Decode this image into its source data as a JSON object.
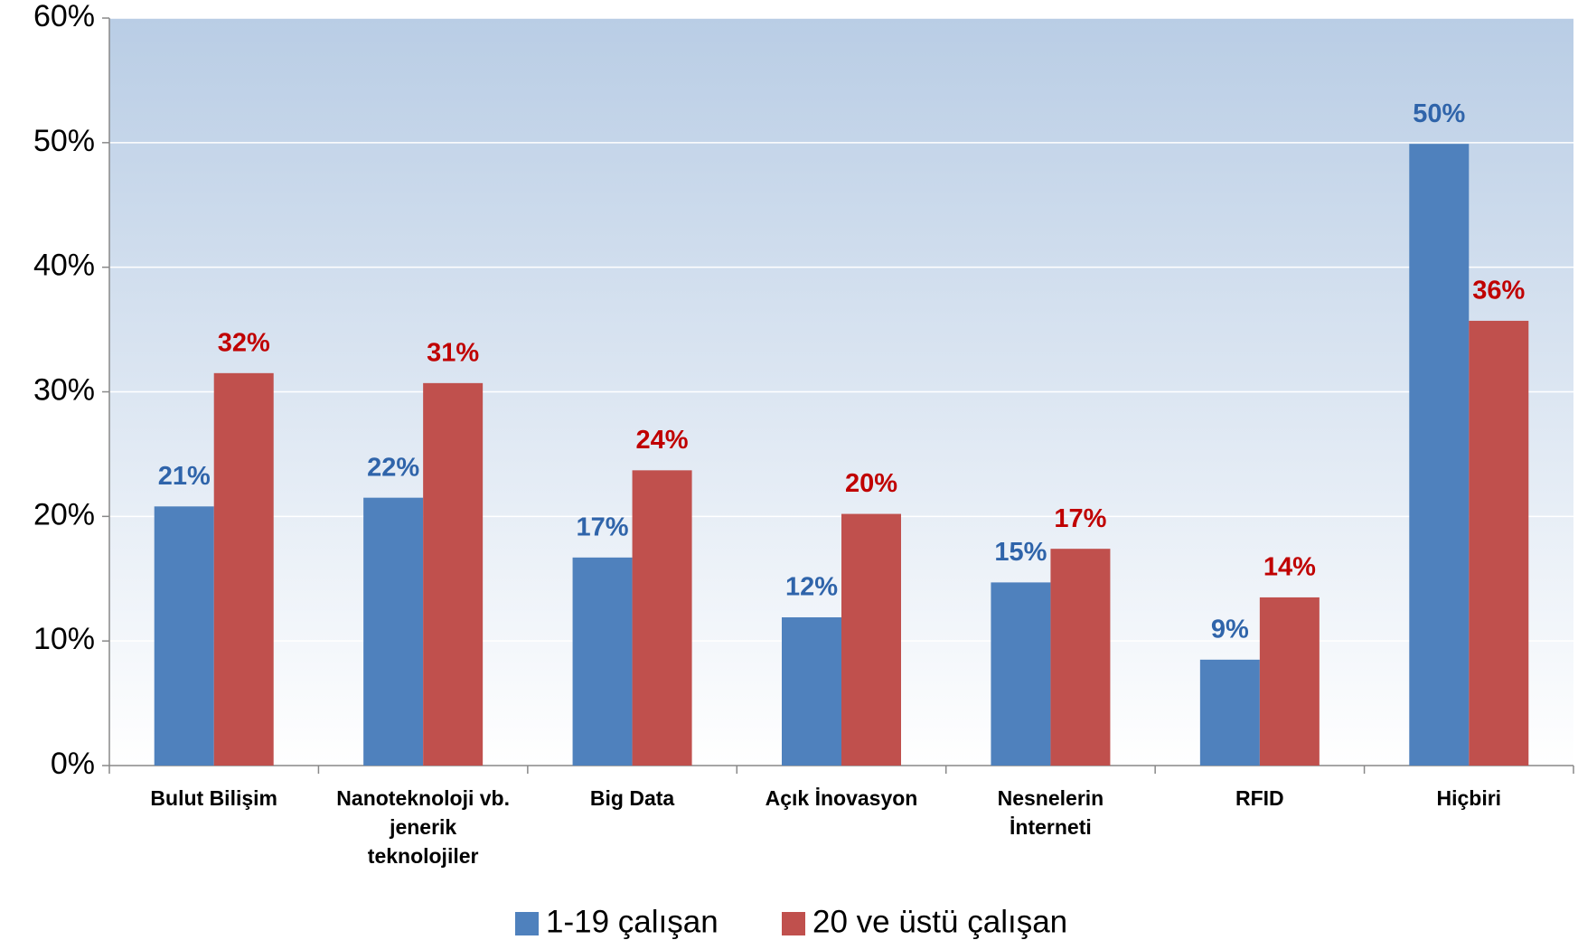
{
  "chart_data": {
    "type": "bar",
    "categories": [
      "Bulut Bilişim",
      "Nanoteknoloji vb.\njenerik\nteknolojiler",
      "Big Data",
      "Açık İnovasyon",
      "Nesnelerin\nİnterneti",
      "RFID",
      "Hiçbiri"
    ],
    "series": [
      {
        "name": "1-19 çalışan",
        "color": "#4f81bd",
        "label_color": "#2f64aa",
        "values": [
          20.8,
          21.5,
          16.7,
          11.9,
          14.7,
          8.5,
          49.9
        ],
        "value_labels": [
          "21%",
          "22%",
          "17%",
          "12%",
          "15%",
          "9%",
          "50%"
        ]
      },
      {
        "name": "20 ve üstü çalışan",
        "color": "#c0504d",
        "label_color": "#c00000",
        "values": [
          31.5,
          30.7,
          23.7,
          20.2,
          17.4,
          13.5,
          35.7
        ],
        "value_labels": [
          "32%",
          "31%",
          "24%",
          "20%",
          "17%",
          "14%",
          "36%"
        ]
      }
    ],
    "ylim": [
      0,
      60
    ],
    "yticks": [
      {
        "value": 0,
        "label": "0%"
      },
      {
        "value": 10,
        "label": "10%"
      },
      {
        "value": 20,
        "label": "20%"
      },
      {
        "value": 30,
        "label": "30%"
      },
      {
        "value": 40,
        "label": "40%"
      },
      {
        "value": 50,
        "label": "50%"
      },
      {
        "value": 60,
        "label": "60%"
      }
    ],
    "grid": true,
    "legend": "bottom"
  }
}
